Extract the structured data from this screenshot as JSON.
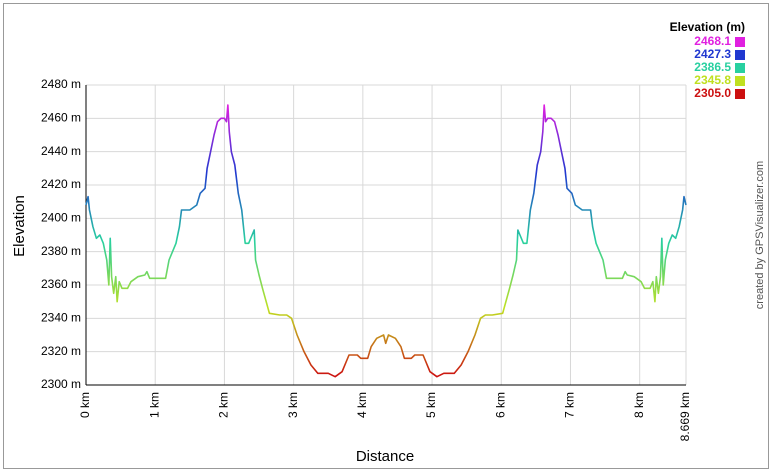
{
  "chart_data": {
    "type": "line",
    "ylabel": "Elevation",
    "xlabel": "Distance",
    "credit": "created by GPSVisualizer.com",
    "legend_title": "Elevation (m)",
    "color_scale": [
      {
        "value": 2468.1,
        "label": "2468.1",
        "color": "#e020e0"
      },
      {
        "value": 2427.3,
        "label": "2427.3",
        "color": "#2038d0"
      },
      {
        "value": 2386.5,
        "label": "2386.5",
        "color": "#28d0a0"
      },
      {
        "value": 2345.8,
        "label": "2345.8",
        "color": "#c0e020"
      },
      {
        "value": 2305.0,
        "label": "2305.0",
        "color": "#cc1010"
      }
    ],
    "xlim": [
      0,
      8.669
    ],
    "ylim": [
      2300,
      2480
    ],
    "xticks": [
      {
        "value": 0,
        "label": "0 km"
      },
      {
        "value": 1,
        "label": "1 km"
      },
      {
        "value": 2,
        "label": "2 km"
      },
      {
        "value": 3,
        "label": "3 km"
      },
      {
        "value": 4,
        "label": "4 km"
      },
      {
        "value": 5,
        "label": "5 km"
      },
      {
        "value": 6,
        "label": "6 km"
      },
      {
        "value": 7,
        "label": "7 km"
      },
      {
        "value": 8,
        "label": "8 km"
      },
      {
        "value": 8.669,
        "label": "8.669 km"
      }
    ],
    "yticks": [
      {
        "value": 2300,
        "label": "2300 m"
      },
      {
        "value": 2320,
        "label": "2320 m"
      },
      {
        "value": 2340,
        "label": "2340 m"
      },
      {
        "value": 2360,
        "label": "2360 m"
      },
      {
        "value": 2380,
        "label": "2380 m"
      },
      {
        "value": 2400,
        "label": "2400 m"
      },
      {
        "value": 2420,
        "label": "2420 m"
      },
      {
        "value": 2440,
        "label": "2440 m"
      },
      {
        "value": 2460,
        "label": "2460 m"
      },
      {
        "value": 2480,
        "label": "2480 m"
      }
    ],
    "grid": true,
    "x": [
      0,
      0.03,
      0.05,
      0.1,
      0.15,
      0.2,
      0.25,
      0.3,
      0.33,
      0.35,
      0.37,
      0.4,
      0.43,
      0.45,
      0.48,
      0.52,
      0.6,
      0.65,
      0.75,
      0.85,
      0.88,
      0.92,
      1.0,
      1.15,
      1.2,
      1.3,
      1.35,
      1.38,
      1.5,
      1.6,
      1.65,
      1.72,
      1.75,
      1.8,
      1.85,
      1.9,
      1.95,
      2.0,
      2.03,
      2.05,
      2.07,
      2.1,
      2.15,
      2.2,
      2.25,
      2.3,
      2.35,
      2.4,
      2.43,
      2.45,
      2.5,
      2.55,
      2.65,
      2.8,
      2.9,
      2.97,
      3.05,
      3.15,
      3.25,
      3.35,
      3.5,
      3.6,
      3.7,
      3.8,
      3.92,
      3.97,
      4.07,
      4.12,
      4.2,
      4.3,
      4.33,
      4.37,
      4.47,
      4.55,
      4.6,
      4.7,
      4.75,
      4.87,
      4.97,
      5.07,
      5.17,
      5.32,
      5.42,
      5.52,
      5.62,
      5.7,
      5.77,
      5.87,
      6.02,
      6.12,
      6.17,
      6.22,
      6.24,
      6.27,
      6.32,
      6.37,
      6.42,
      6.47,
      6.52,
      6.57,
      6.6,
      6.62,
      6.64,
      6.67,
      6.72,
      6.77,
      6.82,
      6.87,
      6.92,
      6.95,
      7.02,
      7.07,
      7.17,
      7.29,
      7.32,
      7.37,
      7.47,
      7.52,
      7.67,
      7.75,
      7.79,
      7.82,
      7.92,
      8.02,
      8.07,
      8.15,
      8.19,
      8.22,
      8.24,
      8.27,
      8.3,
      8.32,
      8.34,
      8.37,
      8.42,
      8.47,
      8.52,
      8.57,
      8.62,
      8.64,
      8.669
    ],
    "values": [
      2408,
      2413,
      2405,
      2395,
      2388,
      2390,
      2385,
      2375,
      2360,
      2388,
      2365,
      2355,
      2365,
      2350,
      2362,
      2358,
      2358,
      2362,
      2365,
      2366,
      2368,
      2364,
      2364,
      2364,
      2375,
      2385,
      2395,
      2405,
      2405,
      2408,
      2415,
      2418,
      2430,
      2440,
      2450,
      2458,
      2460,
      2460,
      2458,
      2468,
      2452,
      2440,
      2432,
      2415,
      2405,
      2385,
      2385,
      2390,
      2393,
      2375,
      2366,
      2358,
      2343,
      2342,
      2342,
      2340,
      2330,
      2320,
      2312,
      2307,
      2307,
      2305,
      2308,
      2318,
      2318,
      2316,
      2316,
      2323,
      2328,
      2330,
      2325,
      2330,
      2328,
      2323,
      2316,
      2316,
      2318,
      2318,
      2308,
      2305,
      2307,
      2307,
      2312,
      2320,
      2330,
      2340,
      2342,
      2342,
      2343,
      2358,
      2366,
      2375,
      2393,
      2390,
      2385,
      2385,
      2405,
      2415,
      2432,
      2440,
      2452,
      2468,
      2458,
      2460,
      2460,
      2458,
      2450,
      2440,
      2430,
      2418,
      2415,
      2408,
      2405,
      2405,
      2395,
      2385,
      2375,
      2364,
      2364,
      2364,
      2368,
      2366,
      2365,
      2362,
      2358,
      2358,
      2362,
      2350,
      2365,
      2355,
      2365,
      2388,
      2360,
      2375,
      2385,
      2390,
      2388,
      2395,
      2405,
      2413,
      2408
    ]
  }
}
